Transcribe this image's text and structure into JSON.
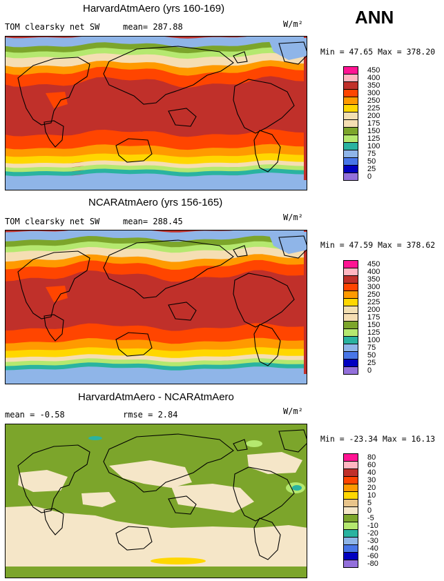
{
  "season": "ANN",
  "panels": [
    {
      "title": "HarvardAtmAero (yrs 160-169)",
      "left_text": "TOM clearsky net SW",
      "mean_text": "mean= 287.88",
      "units": "W/m²",
      "minmax": "Min =  47.65 Max = 378.20",
      "kind": "field"
    },
    {
      "title": "NCARAtmAero (yrs 156-165)",
      "left_text": "TOM clearsky net SW",
      "mean_text": "mean= 288.45",
      "units": "W/m²",
      "minmax": "Min =  47.59 Max = 378.62",
      "kind": "field"
    },
    {
      "title": "HarvardAtmAero - NCARAtmAero",
      "left_text": "mean =  -0.58",
      "mean_text": "rmse =   2.84",
      "units": "W/m²",
      "minmax": "Min = -23.34 Max =  16.13",
      "kind": "diff"
    }
  ],
  "chart_data": [
    {
      "type": "heatmap",
      "title": "HarvardAtmAero (yrs 160-169)",
      "variable": "TOM clearsky net SW",
      "units": "W/m2",
      "mean": 287.88,
      "min": 47.65,
      "max": 378.2,
      "levels": [
        "450",
        "400",
        "350",
        "300",
        "250",
        "225",
        "200",
        "175",
        "150",
        "125",
        "100",
        "75",
        "50",
        "25",
        "0"
      ],
      "colors": [
        "#ff1493",
        "#ffb6c1",
        "#c0302a",
        "#ff4500",
        "#ff9a00",
        "#ffd700",
        "#f2dfb2",
        "#f5deb3",
        "#7ca52b",
        "#b5e86f",
        "#2ab3a0",
        "#8fb5e8",
        "#4876e8",
        "#0000c0",
        "#9370db"
      ]
    },
    {
      "type": "heatmap",
      "title": "NCARAtmAero (yrs 156-165)",
      "variable": "TOM clearsky net SW",
      "units": "W/m2",
      "mean": 288.45,
      "min": 47.59,
      "max": 378.62,
      "levels": [
        "450",
        "400",
        "350",
        "300",
        "250",
        "225",
        "200",
        "175",
        "150",
        "125",
        "100",
        "75",
        "50",
        "25",
        "0"
      ],
      "colors": [
        "#ff1493",
        "#ffb6c1",
        "#c0302a",
        "#ff4500",
        "#ff9a00",
        "#ffd700",
        "#f2dfb2",
        "#f5deb3",
        "#7ca52b",
        "#b5e86f",
        "#2ab3a0",
        "#8fb5e8",
        "#4876e8",
        "#0000c0",
        "#9370db"
      ]
    },
    {
      "type": "heatmap",
      "title": "HarvardAtmAero - NCARAtmAero",
      "units": "W/m2",
      "mean": -0.58,
      "rmse": 2.84,
      "min": -23.34,
      "max": 16.13,
      "levels": [
        "80",
        "60",
        "40",
        "30",
        "20",
        "10",
        "5",
        "0",
        "-5",
        "-10",
        "-20",
        "-30",
        "-40",
        "-60",
        "-80"
      ],
      "colors": [
        "#ff1493",
        "#ffb6c1",
        "#c0302a",
        "#ff4500",
        "#ff9a00",
        "#ffd700",
        "#e8c48a",
        "#f5e6c8",
        "#7ca52b",
        "#b5e86f",
        "#2ab3a0",
        "#8fb5e8",
        "#4876e8",
        "#0000c0",
        "#9370db"
      ]
    }
  ]
}
